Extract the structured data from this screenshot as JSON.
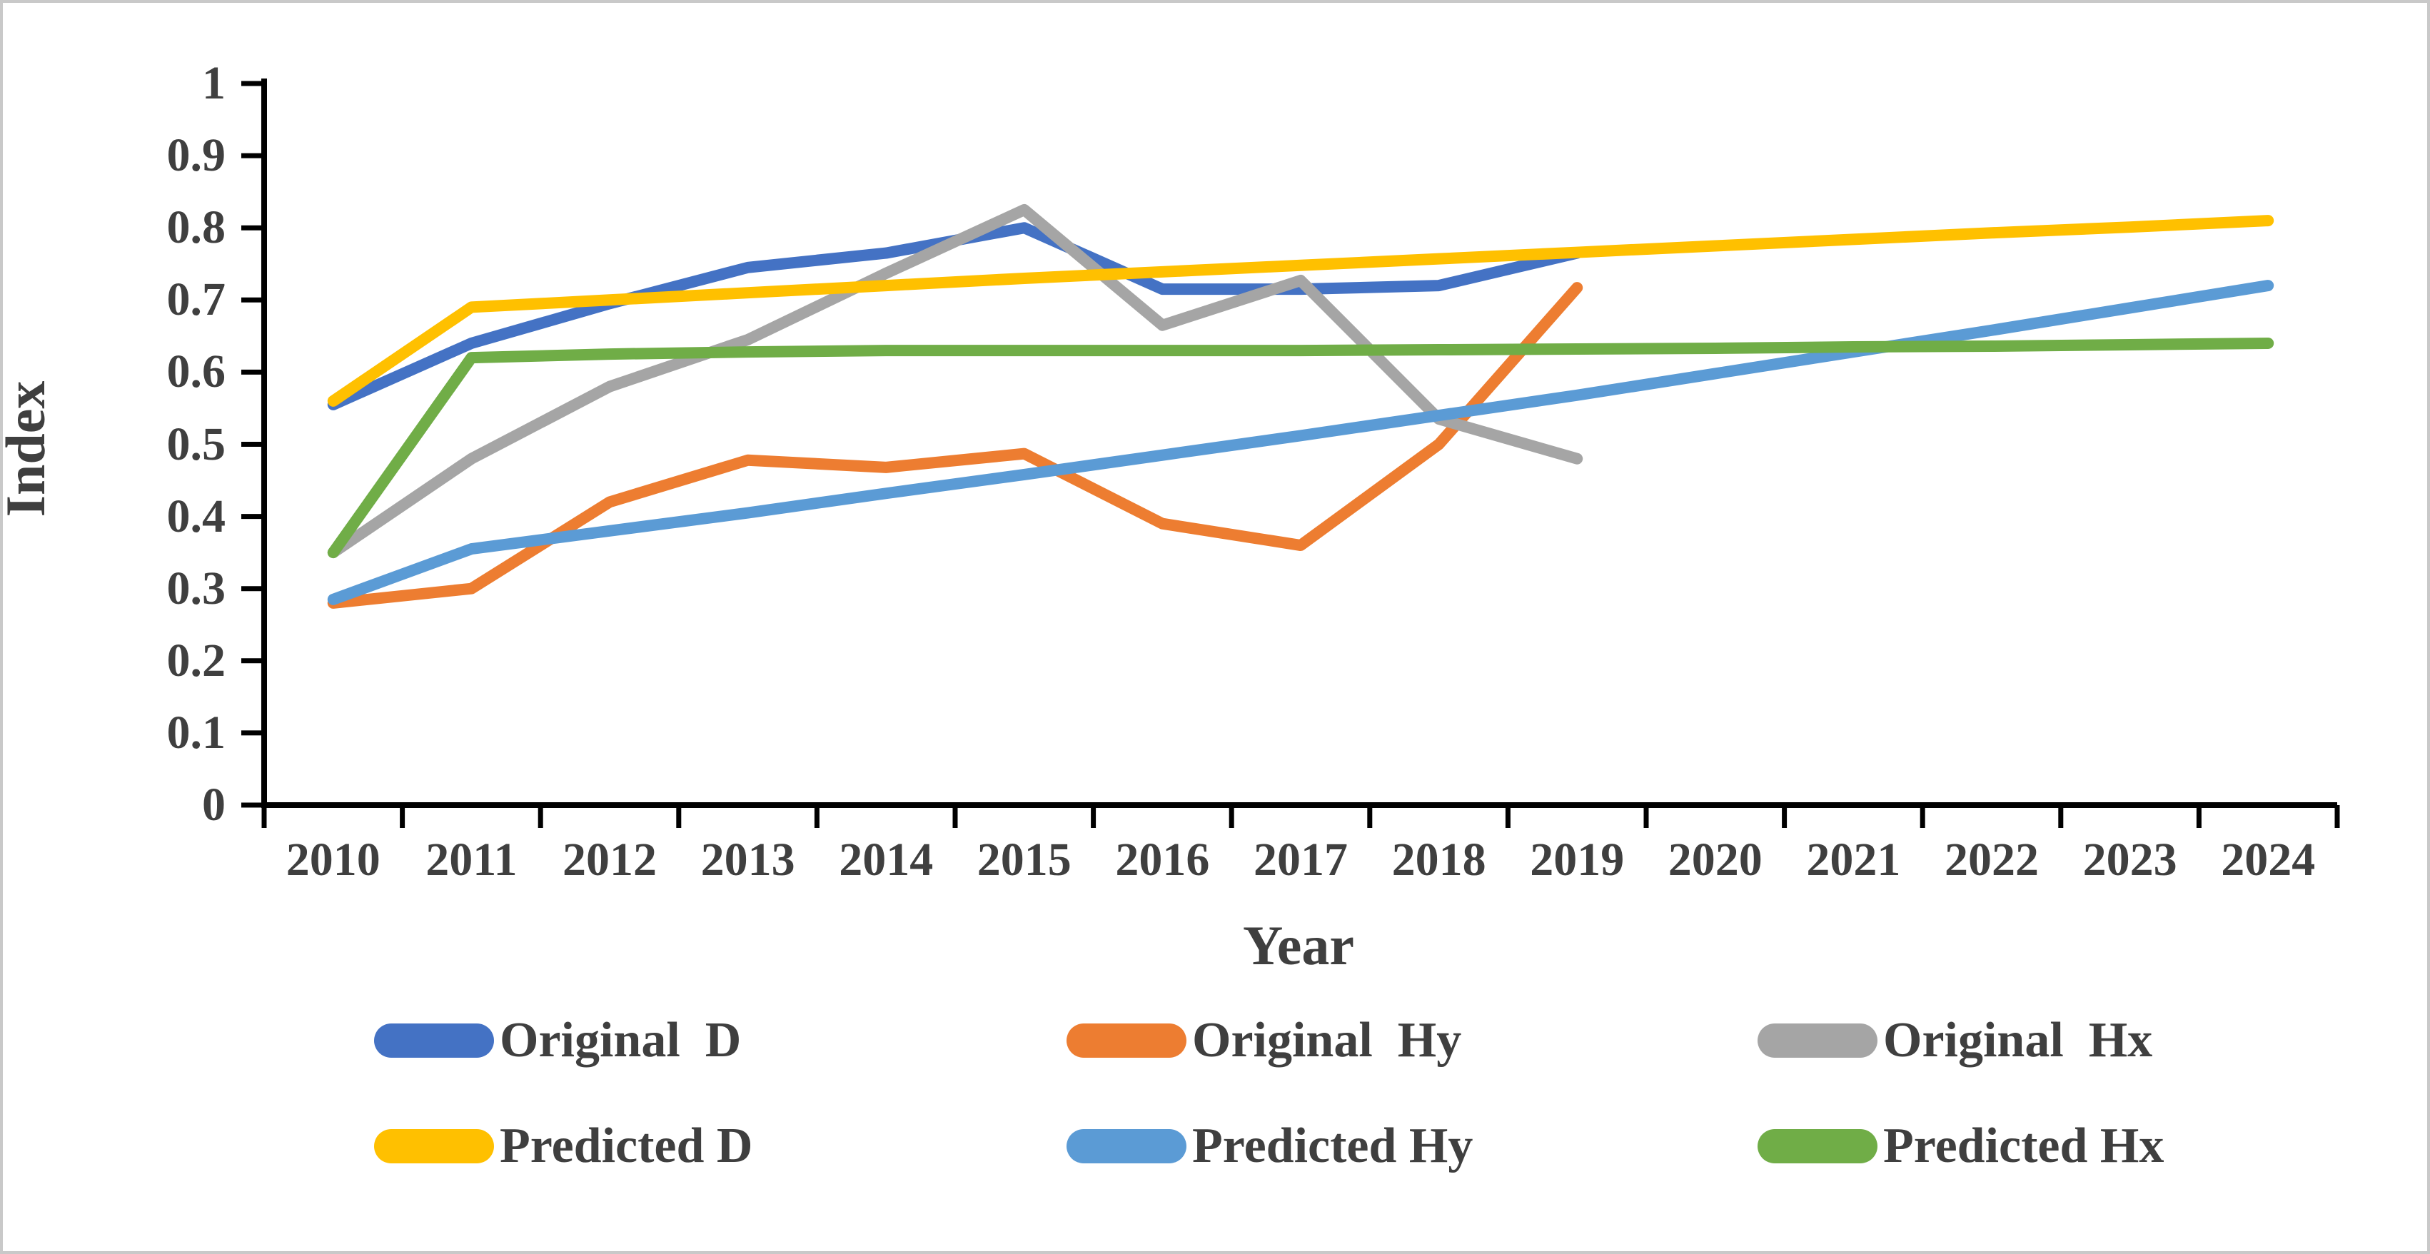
{
  "figure": {
    "background_color": "#ffffff",
    "frame_color": "#c9c9c9",
    "axis_line_color": "#000000",
    "text_color": "#3f3f3f"
  },
  "chart_data": {
    "type": "line",
    "title": "",
    "xlabel": "Year",
    "ylabel": "Index",
    "x": [
      "2010",
      "2011",
      "2012",
      "2013",
      "2014",
      "2015",
      "2016",
      "2017",
      "2018",
      "2019",
      "2020",
      "2021",
      "2022",
      "2023",
      "2024"
    ],
    "ylim": [
      0,
      1
    ],
    "ytick_labels": [
      "0",
      "0.1",
      "0.2",
      "0.3",
      "0.4",
      "0.5",
      "0.6",
      "0.7",
      "0.8",
      "0.9",
      "1"
    ],
    "grid": false,
    "legend_position": "bottom",
    "series": [
      {
        "name": "Original  D",
        "color": "#4472C4",
        "values": [
          0.555,
          0.64,
          0.695,
          0.745,
          0.765,
          0.8,
          0.715,
          0.715,
          0.72,
          0.765
        ]
      },
      {
        "name": "Original  Hy",
        "color": "#ED7D31",
        "values": [
          0.28,
          0.3,
          0.42,
          0.478,
          0.468,
          0.487,
          0.39,
          0.36,
          0.5,
          0.717
        ]
      },
      {
        "name": "Original  Hx",
        "color": "#A5A5A5",
        "values": [
          0.35,
          0.48,
          0.58,
          0.645,
          0.737,
          0.825,
          0.665,
          0.727,
          0.535,
          0.48
        ]
      },
      {
        "name": "Predicted D",
        "color": "#FFC000",
        "values": [
          0.56,
          0.69,
          0.7,
          0.71,
          0.72,
          0.73,
          0.739,
          0.748,
          0.757,
          0.766,
          0.775,
          0.784,
          0.793,
          0.801,
          0.81
        ]
      },
      {
        "name": "Predicted Hy",
        "color": "#5B9BD5",
        "values": [
          0.285,
          0.355,
          0.38,
          0.405,
          0.432,
          0.458,
          0.485,
          0.512,
          0.54,
          0.568,
          0.598,
          0.628,
          0.658,
          0.689,
          0.72
        ]
      },
      {
        "name": "Predicted Hx",
        "color": "#70AD47",
        "values": [
          0.35,
          0.62,
          0.625,
          0.628,
          0.63,
          0.63,
          0.63,
          0.63,
          0.631,
          0.632,
          0.633,
          0.635,
          0.636,
          0.638,
          0.64
        ]
      }
    ]
  }
}
